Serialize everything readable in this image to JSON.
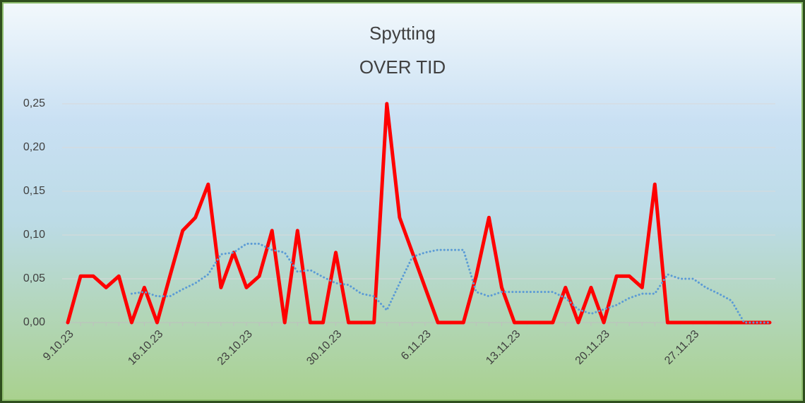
{
  "chart_data": {
    "type": "line",
    "title": [
      "Spytting",
      "OVER TID"
    ],
    "categories": [
      "9.10.23",
      null,
      null,
      null,
      null,
      null,
      null,
      "16.10.23",
      null,
      null,
      null,
      null,
      null,
      null,
      "23.10.23",
      null,
      null,
      null,
      null,
      null,
      null,
      "30.10.23",
      null,
      null,
      null,
      null,
      null,
      null,
      "6.11.23",
      null,
      null,
      null,
      null,
      null,
      null,
      "13.11.23",
      null,
      null,
      null,
      null,
      null,
      null,
      "20.11.23",
      null,
      null,
      null,
      null,
      null,
      null,
      "27.11.23",
      null,
      null,
      null,
      null,
      null,
      null
    ],
    "series": [
      {
        "color": "#ff0000",
        "style": "solid",
        "values": [
          0,
          0.053,
          0.053,
          0.04,
          0.053,
          0,
          0.04,
          0,
          0.053,
          0.105,
          0.12,
          0.158,
          0.04,
          0.08,
          0.04,
          0.053,
          0.105,
          0,
          0.105,
          0,
          0,
          0.08,
          0,
          0,
          0,
          0.25,
          0.12,
          0.08,
          0.04,
          0,
          0,
          0,
          0.053,
          0.12,
          0.04,
          0,
          0,
          0,
          0,
          0.04,
          0,
          0.04,
          0,
          0.053,
          0.053,
          0.04,
          0.158,
          0,
          0,
          0,
          0,
          0,
          0,
          0,
          0,
          0
        ]
      },
      {
        "color": "#5b9bd5",
        "style": "dotted",
        "values": [
          null,
          null,
          null,
          null,
          null,
          0.033,
          0.035,
          0.03,
          0.03,
          0.038,
          0.045,
          0.055,
          0.078,
          0.08,
          0.09,
          0.09,
          0.083,
          0.08,
          0.058,
          0.06,
          0.052,
          0.045,
          0.043,
          0.033,
          0.03,
          0.014,
          0.045,
          0.075,
          0.08,
          0.083,
          0.083,
          0.083,
          0.035,
          0.03,
          0.035,
          0.035,
          0.035,
          0.035,
          0.035,
          0.028,
          0.015,
          0.01,
          0.015,
          0.02,
          0.028,
          0.033,
          0.033,
          0.055,
          0.05,
          0.05,
          0.04,
          0.033,
          0.025,
          0,
          0,
          0
        ]
      }
    ],
    "ylim": [
      0,
      0.25
    ],
    "yticks": [
      {
        "value": 0,
        "label": "0,00"
      },
      {
        "value": 0.05,
        "label": "0,05"
      },
      {
        "value": 0.1,
        "label": "0,10"
      },
      {
        "value": 0.15,
        "label": "0,15"
      },
      {
        "value": 0.2,
        "label": "0,20"
      },
      {
        "value": 0.25,
        "label": "0,25"
      }
    ],
    "grid": true
  }
}
